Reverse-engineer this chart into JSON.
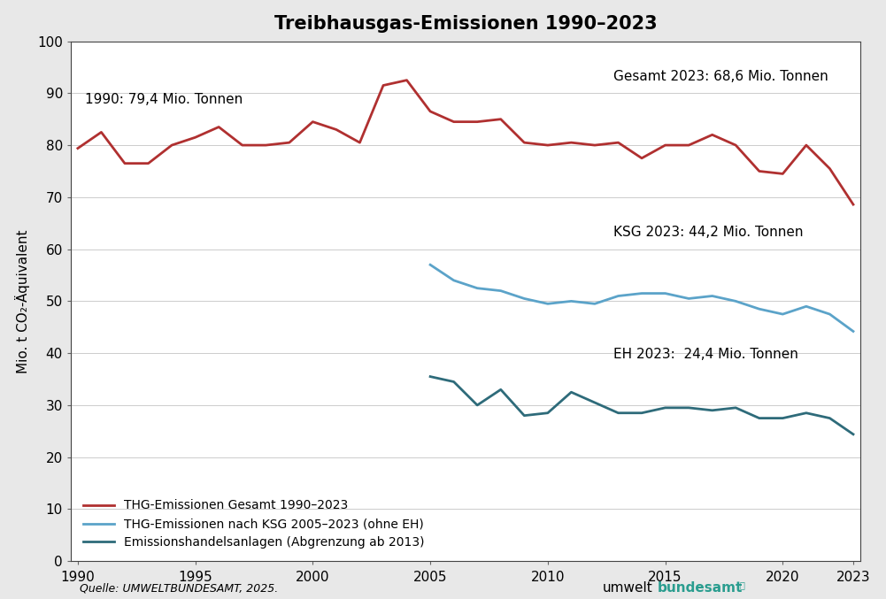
{
  "title": "Treibhausgas-Emissionen 1990–2023",
  "ylabel": "Mio. t CO₂-Äquivalent",
  "source_text": "Quelle: UMWELTBUNDESAMT, 2025.",
  "annotation_1990": "1990: 79,4 Mio. Tonnen",
  "annotation_gesamt": "Gesamt 2023: 68,6 Mio. Tonnen",
  "annotation_ksg": "KSG 2023: 44,2 Mio. Tonnen",
  "annotation_eh": "EH 2023:  24,4 Mio. Tonnen",
  "legend_gesamt": "THG-Emissionen Gesamt 1990–2023",
  "legend_ksg": "THG-Emissionen nach KSG 2005–2023 (ohne EH)",
  "legend_eh": "Emissionshandelsanlagen (Abgrenzung ab 2013)",
  "gesamt_years": [
    1990,
    1991,
    1992,
    1993,
    1994,
    1995,
    1996,
    1997,
    1998,
    1999,
    2000,
    2001,
    2002,
    2003,
    2004,
    2005,
    2006,
    2007,
    2008,
    2009,
    2010,
    2011,
    2012,
    2013,
    2014,
    2015,
    2016,
    2017,
    2018,
    2019,
    2020,
    2021,
    2022,
    2023
  ],
  "gesamt_values": [
    79.4,
    82.5,
    76.5,
    76.5,
    80.0,
    81.5,
    83.5,
    80.0,
    80.0,
    80.5,
    84.5,
    83.0,
    80.5,
    91.5,
    92.5,
    86.5,
    84.5,
    84.5,
    85.0,
    80.5,
    80.0,
    80.5,
    80.0,
    80.5,
    77.5,
    80.0,
    80.0,
    82.0,
    80.0,
    75.0,
    74.5,
    80.0,
    75.5,
    68.6
  ],
  "ksg_years": [
    2005,
    2006,
    2007,
    2008,
    2009,
    2010,
    2011,
    2012,
    2013,
    2014,
    2015,
    2016,
    2017,
    2018,
    2019,
    2020,
    2021,
    2022,
    2023
  ],
  "ksg_values": [
    57.0,
    54.0,
    52.5,
    52.0,
    50.5,
    49.5,
    50.0,
    49.5,
    51.0,
    51.5,
    51.5,
    50.5,
    51.0,
    50.0,
    48.5,
    47.5,
    49.0,
    47.5,
    44.2
  ],
  "eh_years": [
    2005,
    2006,
    2007,
    2008,
    2009,
    2010,
    2011,
    2012,
    2013,
    2014,
    2015,
    2016,
    2017,
    2018,
    2019,
    2020,
    2021,
    2022,
    2023
  ],
  "eh_values": [
    35.5,
    34.5,
    30.0,
    33.0,
    28.0,
    28.5,
    32.5,
    30.5,
    28.5,
    28.5,
    29.5,
    29.5,
    29.0,
    29.5,
    27.5,
    27.5,
    28.5,
    27.5,
    24.4
  ],
  "color_gesamt": "#b03030",
  "color_ksg": "#5ba3c9",
  "color_eh": "#2e6b7a",
  "ylim": [
    0,
    100
  ],
  "xlim_min": 1990,
  "xlim_max": 2023,
  "yticks": [
    0,
    10,
    20,
    30,
    40,
    50,
    60,
    70,
    80,
    90,
    100
  ],
  "xticks": [
    1990,
    1995,
    2000,
    2005,
    2010,
    2015,
    2020,
    2023
  ],
  "plot_bg": "#ffffff",
  "fig_bg": "#e8e8e8",
  "border_color": "#999999",
  "logo_color": "#2a9d8f",
  "grid_color": "#cccccc"
}
